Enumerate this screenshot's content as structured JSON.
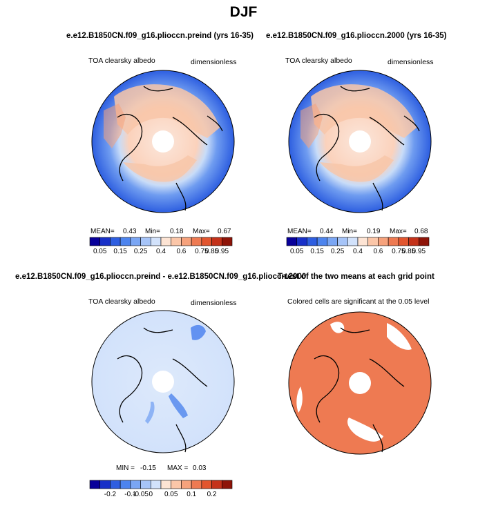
{
  "title": "DJF",
  "panels": [
    {
      "title": "e.e12.B1850CN.f09_g16.plioccn.preind (yrs 16-35)",
      "left_label": "TOA clearsky albedo",
      "right_label": "dimensionless",
      "stats": {
        "mean_label": "MEAN=",
        "mean": "0.43",
        "min_label": "Min=",
        "min": "0.18",
        "max_label": "Max=",
        "max": "0.67"
      }
    },
    {
      "title": "e.e12.B1850CN.f09_g16.plioccn.2000 (yrs 16-35)",
      "left_label": "TOA clearsky albedo",
      "right_label": "dimensionless",
      "stats": {
        "mean_label": "MEAN=",
        "mean": "0.44",
        "min_label": "Min=",
        "min": "0.19",
        "max_label": "Max=",
        "max": "0.68"
      }
    },
    {
      "title": "e.e12.B1850CN.f09_g16.plioccn.preind - e.e12.B1850CN.f09_g16.plioccn.2000",
      "left_label": "TOA clearsky albedo",
      "right_label": "dimensionless",
      "stats": {
        "min_label": "MIN =",
        "min": "-0.15",
        "max_label": "MAX =",
        "max": "0.03"
      }
    },
    {
      "title": "T-test of the two means at each grid point",
      "left_label": "Colored cells are significant at the 0.05 level"
    }
  ],
  "colorbars": {
    "absolute": {
      "colors": [
        "#08009a",
        "#1830c8",
        "#2e5ee0",
        "#4d84ee",
        "#7aa6f4",
        "#a6c4f8",
        "#d2e2fb",
        "#fde4d4",
        "#fbc6a8",
        "#f6a27c",
        "#ee7a52",
        "#e2552e",
        "#c4321a",
        "#8e1408"
      ],
      "ticks": [
        "0.05",
        "0.15",
        "0.25",
        "0.4",
        "0.6",
        "0.75",
        "0.85",
        "0.95"
      ]
    },
    "difference": {
      "colors": [
        "#08009a",
        "#1830c8",
        "#2e5ee0",
        "#4d84ee",
        "#7aa6f4",
        "#a6c4f8",
        "#d2e2fb",
        "#fde4d4",
        "#fbc6a8",
        "#f6a27c",
        "#ee7a52",
        "#e2552e",
        "#c4321a",
        "#8e1408"
      ],
      "ticks": [
        "-0.2",
        "-0.1",
        "-0.05",
        "0",
        "0.05",
        "0.1",
        "0.2"
      ]
    }
  },
  "chart_data": [
    {
      "type": "heatmap",
      "projection": "north polar stereographic",
      "title": "e.e12.B1850CN.f09_g16.plioccn.preind (yrs 16-35)",
      "variable": "TOA clearsky albedo",
      "units": "dimensionless",
      "mean": 0.43,
      "min": 0.18,
      "max": 0.67
    },
    {
      "type": "heatmap",
      "projection": "north polar stereographic",
      "title": "e.e12.B1850CN.f09_g16.plioccn.2000 (yrs 16-35)",
      "variable": "TOA clearsky albedo",
      "units": "dimensionless",
      "mean": 0.44,
      "min": 0.19,
      "max": 0.68
    },
    {
      "type": "heatmap",
      "projection": "north polar stereographic",
      "title": "e.e12.B1850CN.f09_g16.plioccn.preind - e.e12.B1850CN.f09_g16.plioccn.2000",
      "variable": "TOA clearsky albedo",
      "units": "dimensionless",
      "min": -0.15,
      "max": 0.03
    },
    {
      "type": "heatmap",
      "projection": "north polar stereographic",
      "title": "T-test of the two means at each grid point",
      "note": "Colored cells are significant at the 0.05 level",
      "significance_level": 0.05
    }
  ]
}
